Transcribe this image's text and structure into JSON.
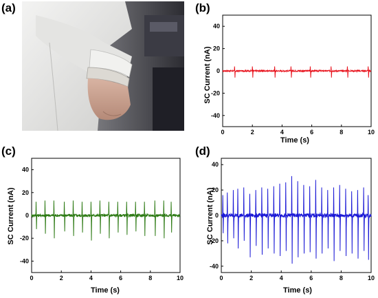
{
  "panels": {
    "a": "(a)",
    "b": "(b)",
    "c": "(c)",
    "d": "(d)"
  },
  "photo": {
    "description": "lab coat sleeve with wrist-worn band",
    "colors": {
      "coat": "#e9e9e7",
      "skin": "#c7a393",
      "band": "#dcd9d3",
      "background": "#4a4a4e"
    }
  },
  "chart_data": [
    {
      "panel": "b",
      "type": "line",
      "xlabel": "Time (s)",
      "ylabel": "SC Current (nA)",
      "xlim": [
        0,
        10
      ],
      "ylim": [
        -50,
        50
      ],
      "xticks": [
        0,
        2,
        4,
        6,
        8,
        10
      ],
      "yticks": [
        -40,
        -20,
        0,
        20,
        40
      ],
      "color": "#e8111b",
      "series": [
        {
          "peak_times": [
            0.8,
            2.0,
            3.5,
            4.6,
            5.9,
            7.3,
            8.4,
            9.8
          ],
          "peak_max": 4,
          "peak_min": -6
        }
      ]
    },
    {
      "panel": "c",
      "type": "line",
      "xlabel": "Time (s)",
      "ylabel": "SC Current (nA)",
      "xlim": [
        0,
        10
      ],
      "ylim": [
        -50,
        50
      ],
      "xticks": [
        0,
        2,
        4,
        6,
        8,
        10
      ],
      "yticks": [
        -40,
        -20,
        0,
        20,
        40
      ],
      "color": "#2d7a14",
      "series": [
        {
          "peak_times": [
            0.3,
            0.9,
            1.5,
            2.2,
            2.8,
            3.4,
            4.0,
            4.6,
            5.2,
            5.8,
            6.4,
            7.0,
            7.6,
            8.3,
            8.9,
            9.4
          ],
          "peak_max": [
            12,
            13,
            13,
            12,
            13,
            12,
            12,
            13,
            12,
            12,
            12,
            12,
            12,
            13,
            13,
            12
          ],
          "peak_min": [
            -12,
            -16,
            -20,
            -14,
            -18,
            -15,
            -22,
            -16,
            -20,
            -15,
            -17,
            -14,
            -18,
            -18,
            -20,
            -15
          ]
        }
      ]
    },
    {
      "panel": "d",
      "type": "line",
      "xlabel": "Time (s)",
      "ylabel": "SC Current (nA)",
      "xlim": [
        0,
        10
      ],
      "ylim": [
        -45,
        45
      ],
      "xticks": [
        0,
        2,
        4,
        6,
        8,
        10
      ],
      "yticks": [
        -40,
        -20,
        0,
        20,
        40
      ],
      "color": "#1b19d6",
      "series": [
        {
          "peak_times": [
            0.1,
            0.4,
            0.8,
            1.1,
            1.5,
            1.9,
            2.3,
            2.7,
            3.1,
            3.5,
            3.9,
            4.3,
            4.7,
            5.1,
            5.5,
            5.9,
            6.3,
            6.7,
            7.1,
            7.5,
            7.9,
            8.3,
            8.7,
            9.1,
            9.5,
            9.8
          ],
          "peak_max": [
            16,
            18,
            20,
            21,
            22,
            17,
            20,
            22,
            21,
            23,
            25,
            26,
            31,
            27,
            24,
            23,
            28,
            22,
            20,
            22,
            24,
            21,
            19,
            20,
            22,
            16
          ],
          "peak_min": [
            -14,
            -22,
            -18,
            -26,
            -20,
            -33,
            -24,
            -31,
            -26,
            -30,
            -32,
            -28,
            -38,
            -33,
            -30,
            -29,
            -34,
            -30,
            -26,
            -36,
            -28,
            -32,
            -30,
            -34,
            -28,
            -35
          ]
        }
      ]
    }
  ]
}
